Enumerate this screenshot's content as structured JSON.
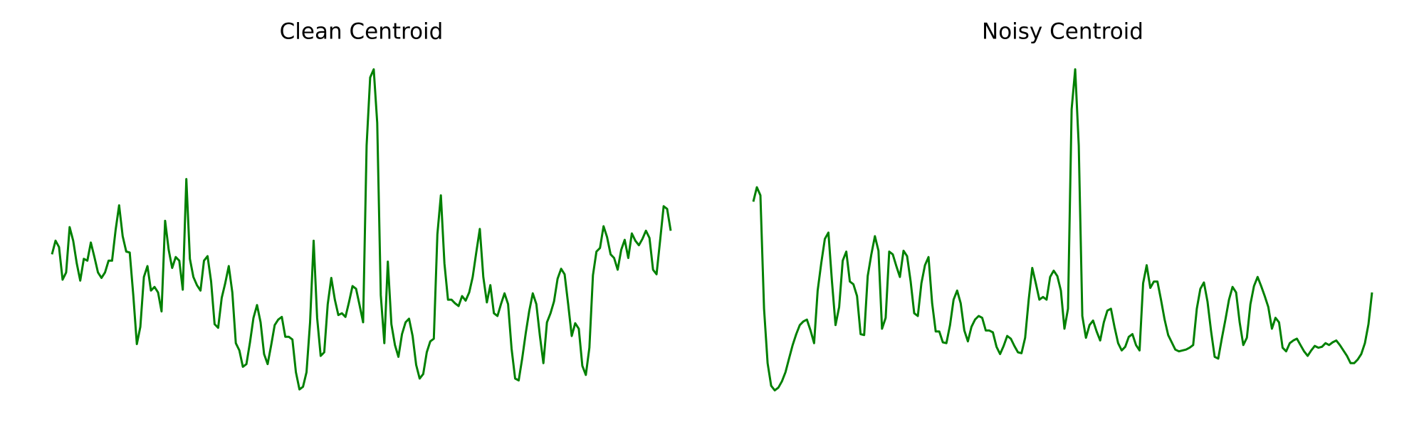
{
  "chart_data": [
    {
      "type": "line",
      "title": "Clean Centroid",
      "color": "#008000",
      "ylim": [
        0,
        390
      ],
      "values": [
        170,
        185,
        178,
        142,
        150,
        200,
        185,
        160,
        141,
        165,
        163,
        183,
        167,
        150,
        144,
        150,
        163,
        163,
        197,
        224,
        190,
        173,
        172,
        125,
        71,
        90,
        145,
        157,
        130,
        134,
        128,
        107,
        207,
        175,
        155,
        167,
        163,
        131,
        253,
        165,
        145,
        136,
        130,
        163,
        168,
        140,
        93,
        89,
        122,
        138,
        157,
        128,
        72,
        64,
        46,
        49,
        73,
        100,
        114,
        95,
        60,
        49,
        70,
        92,
        98,
        101,
        79,
        79,
        76,
        40,
        21,
        24,
        40,
        95,
        185,
        100,
        58,
        62,
        115,
        144,
        120,
        103,
        105,
        101,
        117,
        135,
        132,
        114,
        95,
        290,
        365,
        374,
        315,
        125,
        72,
        162,
        93,
        70,
        57,
        82,
        95,
        99,
        80,
        48,
        33,
        38,
        62,
        74,
        77,
        192,
        235,
        160,
        120,
        120,
        116,
        113,
        124,
        119,
        128,
        145,
        172,
        198,
        145,
        117,
        136,
        105,
        102,
        115,
        127,
        115,
        66,
        33,
        31,
        55,
        83,
        108,
        127,
        115,
        80,
        50,
        95,
        105,
        118,
        143,
        154,
        148,
        115,
        80,
        94,
        88,
        47,
        37,
        67,
        147,
        173,
        177,
        201,
        189,
        170,
        166,
        153,
        175,
        186,
        166,
        193,
        185,
        180,
        187,
        196,
        188,
        153,
        148,
        185,
        223,
        220,
        196
      ]
    },
    {
      "type": "line",
      "title": "Noisy Centroid",
      "color": "#008000",
      "ylim": [
        0,
        390
      ],
      "values": [
        228,
        244,
        235,
        110,
        50,
        25,
        20,
        23,
        30,
        40,
        55,
        70,
        82,
        92,
        96,
        98,
        86,
        72,
        130,
        160,
        187,
        194,
        140,
        92,
        112,
        163,
        173,
        140,
        137,
        124,
        82,
        81,
        146,
        170,
        190,
        174,
        88,
        100,
        173,
        170,
        157,
        145,
        174,
        168,
        140,
        105,
        102,
        138,
        158,
        167,
        116,
        85,
        85,
        73,
        72,
        92,
        120,
        130,
        116,
        86,
        74,
        90,
        98,
        102,
        100,
        86,
        86,
        84,
        68,
        60,
        69,
        80,
        77,
        69,
        62,
        61,
        78,
        120,
        155,
        138,
        120,
        123,
        120,
        145,
        152,
        146,
        130,
        88,
        110,
        330,
        374,
        290,
        102,
        78,
        92,
        97,
        85,
        75,
        95,
        108,
        110,
        90,
        72,
        64,
        68,
        79,
        82,
        70,
        64,
        138,
        158,
        133,
        140,
        140,
        120,
        98,
        81,
        73,
        65,
        63,
        64,
        65,
        67,
        70,
        110,
        132,
        139,
        118,
        85,
        57,
        55,
        77,
        98,
        120,
        134,
        128,
        95,
        70,
        78,
        115,
        135,
        145,
        135,
        124,
        112,
        88,
        100,
        95,
        67,
        63,
        72,
        75,
        77,
        70,
        63,
        58,
        64,
        69,
        67,
        68,
        72,
        70,
        73,
        75,
        70,
        64,
        58,
        50,
        50,
        54,
        60,
        72,
        93,
        128
      ]
    }
  ]
}
